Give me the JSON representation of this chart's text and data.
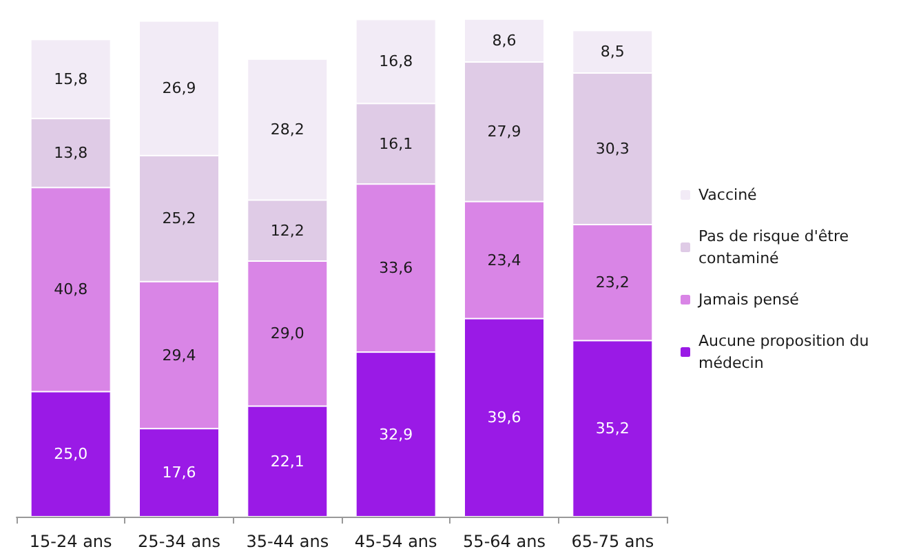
{
  "chart_data": {
    "type": "bar",
    "stacked": true,
    "legend": "right",
    "grid": false,
    "categories": [
      "15-24 ans",
      "25-34 ans",
      "35-44 ans",
      "45-54 ans",
      "55-64 ans",
      "65-75 ans"
    ],
    "series": [
      {
        "name": "Aucune proposition du médecin",
        "color": "#9a1ae6",
        "values": [
          25.0,
          17.6,
          22.1,
          32.9,
          39.6,
          35.2
        ],
        "value_labels": [
          "25,0",
          "17,6",
          "22,1",
          "32,9",
          "39,6",
          "35,2"
        ]
      },
      {
        "name": "Jamais pensé",
        "color": "#d985e6",
        "values": [
          40.8,
          29.4,
          29.0,
          33.6,
          23.4,
          23.2
        ],
        "value_labels": [
          "40,8",
          "29,4",
          "29,0",
          "33,6",
          "23,4",
          "23,2"
        ]
      },
      {
        "name": "Pas de risque d'être contaminé",
        "color": "#dfcbe6",
        "values": [
          13.8,
          25.2,
          12.2,
          16.1,
          27.9,
          30.3
        ],
        "value_labels": [
          "13,8",
          "25,2",
          "12,2",
          "16,1",
          "27,9",
          "30,3"
        ]
      },
      {
        "name": "Vacciné",
        "color": "#f2ebf6",
        "values": [
          15.8,
          26.9,
          28.2,
          16.8,
          8.6,
          8.5
        ],
        "value_labels": [
          "15,8",
          "26,9",
          "28,2",
          "16,8",
          "8,6",
          "8,5"
        ]
      }
    ]
  }
}
